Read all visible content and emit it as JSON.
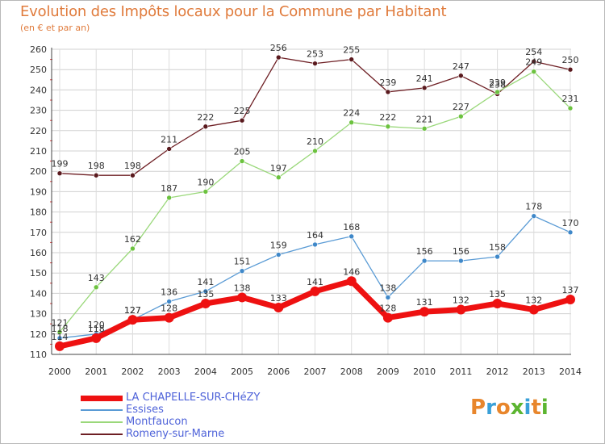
{
  "title": "Evolution des Impôts locaux pour la Commune par Habitant",
  "subtitle": "(en € et par an)",
  "logo": {
    "text": "Proxiti",
    "colors": [
      "#e8862c",
      "#3aa0d8",
      "#e8862c",
      "#5cb531",
      "#3aa0d8",
      "#e8862c",
      "#5cb531"
    ]
  },
  "chart_data": {
    "type": "line",
    "x": [
      2000,
      2001,
      2002,
      2003,
      2004,
      2005,
      2006,
      2007,
      2008,
      2009,
      2010,
      2011,
      2012,
      2013,
      2014
    ],
    "ylim": [
      110,
      260
    ],
    "yticks": [
      110,
      120,
      130,
      140,
      150,
      160,
      170,
      180,
      190,
      200,
      210,
      220,
      230,
      240,
      250,
      260
    ],
    "grid": true,
    "series": [
      {
        "name": "Romeny-sur-Marne",
        "color": "#6e1f24",
        "dot": "#5a1a1e",
        "width": 1.3,
        "r": 3,
        "values": [
          199,
          198,
          198,
          211,
          222,
          225,
          256,
          253,
          255,
          239,
          241,
          247,
          238,
          254,
          250
        ],
        "labels": [
          "199",
          "198",
          "198",
          "211",
          "222",
          "225",
          "256",
          "253",
          "255",
          "239",
          "241",
          "247",
          "238",
          "254",
          "250"
        ]
      },
      {
        "name": "Montfaucon",
        "color": "#9ad87a",
        "dot": "#6cc23f",
        "width": 1.3,
        "r": 3,
        "values": [
          121,
          143,
          162,
          187,
          190,
          205,
          197,
          210,
          224,
          222,
          221,
          227,
          239,
          249,
          231
        ],
        "labels": [
          "121",
          "143",
          "162",
          "187",
          "190",
          "205",
          "197",
          "210",
          "224",
          "222",
          "221",
          "227",
          "239",
          "249",
          "231"
        ]
      },
      {
        "name": "Essises",
        "color": "#5a9bd5",
        "dot": "#3f88c9",
        "width": 1.3,
        "r": 3,
        "values": [
          118,
          120,
          127,
          136,
          141,
          151,
          159,
          164,
          168,
          138,
          156,
          156,
          158,
          178,
          170
        ],
        "labels": [
          "118",
          "120",
          "127",
          "136",
          "141",
          "151",
          "159",
          "164",
          "168",
          "138",
          "156",
          "156",
          "158",
          "178",
          "170"
        ]
      },
      {
        "name": "LA CHAPELLE-SUR-CHéZY",
        "color": "#ee1111",
        "dot": "#ee1111",
        "width": 7,
        "r": 6,
        "values": [
          114,
          118,
          127,
          128,
          135,
          138,
          133,
          141,
          146,
          128,
          131,
          132,
          135,
          132,
          137
        ],
        "labels": [
          "114",
          "118",
          "127",
          "128",
          "135",
          "138",
          "133",
          "141",
          "146",
          "128",
          "131",
          "132",
          "135",
          "132",
          "137"
        ]
      }
    ],
    "legend": [
      {
        "label": "LA CHAPELLE-SUR-CHéZY",
        "color": "#ee1111",
        "thick": true
      },
      {
        "label": "Essises",
        "color": "#5a9bd5",
        "thick": false
      },
      {
        "label": "Montfaucon",
        "color": "#9ad87a",
        "thick": false
      },
      {
        "label": "Romeny-sur-Marne",
        "color": "#6e1f24",
        "thick": false
      }
    ],
    "legend_position": "bottom-left"
  }
}
